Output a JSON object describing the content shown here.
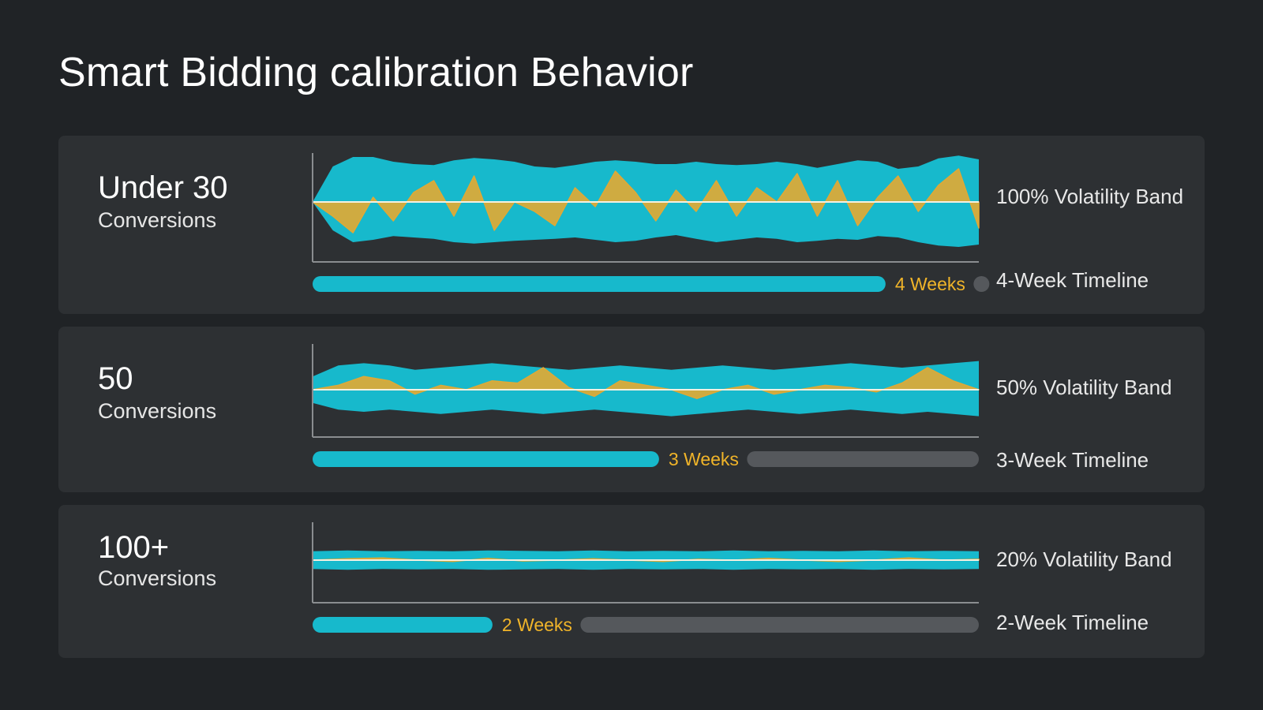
{
  "title": "Smart Bidding calibration Behavior",
  "colors": {
    "background": "#202326",
    "card": "#2d3033",
    "band": "#17b9cc",
    "signal": "#e0a935",
    "track": "#55585c",
    "weeks_text": "#f0b429"
  },
  "chart_data": [
    {
      "type": "area",
      "group": "Under 30",
      "group_sub": "Conversions",
      "band_label": "100% Volatility Band",
      "volatility_pct": 100,
      "timeline_label": "4-Week Timeline",
      "weeks_label": "4 Weeks",
      "weeks": 4,
      "progress": 0.86,
      "band_upper": [
        0.0,
        0.75,
        0.95,
        0.95,
        0.85,
        0.8,
        0.78,
        0.88,
        0.93,
        0.9,
        0.85,
        0.75,
        0.72,
        0.78,
        0.85,
        0.88,
        0.85,
        0.8,
        0.8,
        0.85,
        0.8,
        0.78,
        0.8,
        0.85,
        0.8,
        0.72,
        0.8,
        0.88,
        0.85,
        0.7,
        0.75,
        0.92,
        0.98,
        0.9
      ],
      "band_lower": [
        0.0,
        -0.6,
        -0.85,
        -0.8,
        -0.72,
        -0.75,
        -0.78,
        -0.85,
        -0.88,
        -0.85,
        -0.82,
        -0.8,
        -0.78,
        -0.75,
        -0.8,
        -0.85,
        -0.82,
        -0.75,
        -0.7,
        -0.78,
        -0.85,
        -0.8,
        -0.75,
        -0.78,
        -0.85,
        -0.82,
        -0.78,
        -0.8,
        -0.72,
        -0.75,
        -0.85,
        -0.92,
        -0.95,
        -0.9
      ],
      "signal": [
        0.0,
        -0.3,
        -0.65,
        0.1,
        -0.4,
        0.2,
        0.45,
        -0.3,
        0.55,
        -0.6,
        0.0,
        -0.2,
        -0.5,
        0.3,
        -0.1,
        0.65,
        0.2,
        -0.4,
        0.25,
        -0.2,
        0.45,
        -0.3,
        0.3,
        0.0,
        0.6,
        -0.3,
        0.45,
        -0.5,
        0.1,
        0.55,
        -0.2,
        0.35,
        0.7,
        -0.55
      ]
    },
    {
      "type": "area",
      "group": "50",
      "group_sub": "Conversions",
      "band_label": "50% Volatility Band",
      "volatility_pct": 50,
      "timeline_label": "3-Week Timeline",
      "weeks_label": "3 Weeks",
      "weeks": 3,
      "progress": 0.52,
      "band_upper": [
        0.3,
        0.55,
        0.6,
        0.55,
        0.45,
        0.5,
        0.55,
        0.6,
        0.55,
        0.5,
        0.45,
        0.5,
        0.55,
        0.5,
        0.45,
        0.5,
        0.55,
        0.5,
        0.45,
        0.5,
        0.55,
        0.6,
        0.55,
        0.5,
        0.55,
        0.6,
        0.65
      ],
      "band_lower": [
        -0.3,
        -0.45,
        -0.5,
        -0.45,
        -0.5,
        -0.55,
        -0.5,
        -0.45,
        -0.5,
        -0.55,
        -0.5,
        -0.45,
        -0.5,
        -0.55,
        -0.6,
        -0.55,
        -0.5,
        -0.45,
        -0.5,
        -0.55,
        -0.5,
        -0.45,
        -0.5,
        -0.55,
        -0.5,
        -0.55,
        -0.6
      ],
      "signal": [
        0.0,
        0.1,
        0.3,
        0.2,
        -0.1,
        0.1,
        0.0,
        0.2,
        0.15,
        0.5,
        0.05,
        -0.15,
        0.2,
        0.1,
        0.0,
        -0.2,
        0.0,
        0.1,
        -0.1,
        0.0,
        0.1,
        0.05,
        -0.05,
        0.15,
        0.5,
        0.2,
        0.0
      ]
    },
    {
      "type": "area",
      "group": "100+",
      "group_sub": "Conversions",
      "band_label": "20% Volatility Band",
      "volatility_pct": 20,
      "timeline_label": "2-Week Timeline",
      "weeks_label": "2 Weeks",
      "weeks": 2,
      "progress": 0.27,
      "band_upper": [
        0.2,
        0.22,
        0.2,
        0.21,
        0.2,
        0.22,
        0.21,
        0.2,
        0.22,
        0.2,
        0.21,
        0.2,
        0.22,
        0.2,
        0.21,
        0.2,
        0.22,
        0.2,
        0.21,
        0.2
      ],
      "band_lower": [
        -0.2,
        -0.22,
        -0.2,
        -0.21,
        -0.2,
        -0.22,
        -0.21,
        -0.2,
        -0.22,
        -0.2,
        -0.21,
        -0.2,
        -0.22,
        -0.2,
        -0.21,
        -0.2,
        -0.22,
        -0.2,
        -0.21,
        -0.2
      ],
      "signal": [
        0.0,
        0.03,
        0.05,
        0.0,
        -0.03,
        0.04,
        -0.02,
        0.0,
        0.03,
        0.0,
        -0.03,
        0.02,
        0.0,
        0.04,
        0.0,
        -0.03,
        0.0,
        0.05,
        0.0,
        0.02
      ]
    }
  ]
}
